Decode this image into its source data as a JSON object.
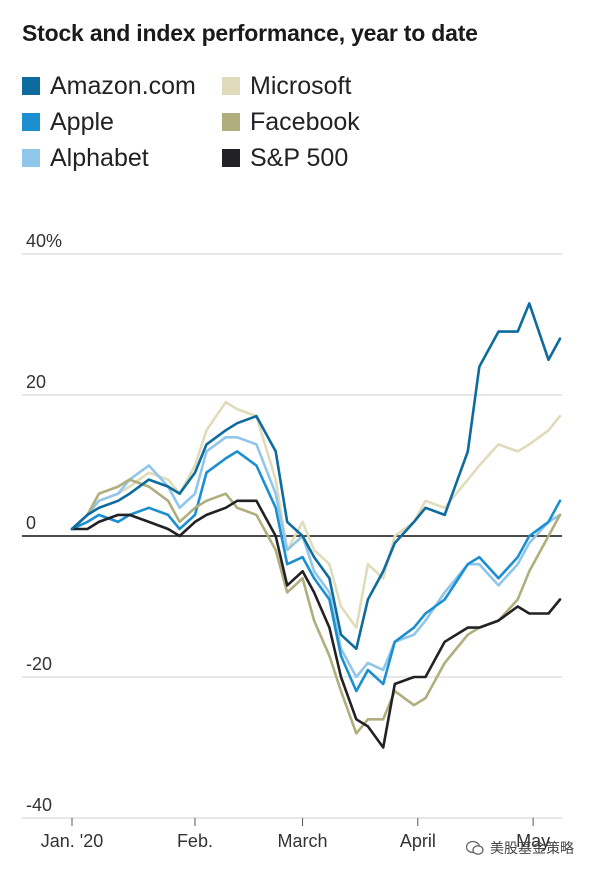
{
  "chart_data": {
    "type": "line",
    "title": "Stock and index performance, year to date",
    "ylim": [
      -40,
      40
    ],
    "ytick_labels": [
      "40%",
      "20",
      "0",
      "-20",
      "-40"
    ],
    "ytick_values": [
      40,
      20,
      0,
      -20,
      -40
    ],
    "xtick_labels": [
      "Jan. '20",
      "Feb.",
      "March",
      "April",
      "May"
    ],
    "xtick_values": [
      "2020-01-02",
      "2020-02-03",
      "2020-03-02",
      "2020-04-01",
      "2020-05-01"
    ],
    "x": [
      "2020-01-02",
      "2020-01-06",
      "2020-01-09",
      "2020-01-14",
      "2020-01-17",
      "2020-01-22",
      "2020-01-27",
      "2020-01-30",
      "2020-02-03",
      "2020-02-06",
      "2020-02-11",
      "2020-02-14",
      "2020-02-19",
      "2020-02-24",
      "2020-02-27",
      "2020-03-02",
      "2020-03-05",
      "2020-03-09",
      "2020-03-12",
      "2020-03-16",
      "2020-03-19",
      "2020-03-23",
      "2020-03-26",
      "2020-03-31",
      "2020-04-03",
      "2020-04-08",
      "2020-04-14",
      "2020-04-17",
      "2020-04-22",
      "2020-04-27",
      "2020-04-30",
      "2020-05-05",
      "2020-05-08"
    ],
    "series": [
      {
        "name": "Amazon.com",
        "color": "#0e6b9e",
        "values": [
          1,
          3,
          4,
          5,
          6,
          8,
          7,
          6,
          9,
          13,
          15,
          16,
          17,
          12,
          2,
          0,
          -3,
          -6,
          -14,
          -16,
          -9,
          -5,
          -1,
          2,
          4,
          3,
          12,
          24,
          29,
          29,
          33,
          25,
          28
        ]
      },
      {
        "name": "Apple",
        "color": "#1b8fd0",
        "values": [
          1,
          2,
          3,
          2,
          3,
          4,
          3,
          1,
          3,
          9,
          11,
          12,
          10,
          4,
          -4,
          -3,
          -6,
          -9,
          -17,
          -22,
          -19,
          -21,
          -15,
          -13,
          -11,
          -9,
          -4,
          -3,
          -6,
          -3,
          0,
          2,
          5
        ]
      },
      {
        "name": "Alphabet",
        "color": "#8fc6ea",
        "values": [
          1,
          3,
          5,
          6,
          8,
          10,
          7,
          4,
          6,
          12,
          14,
          14,
          13,
          6,
          -2,
          0,
          -5,
          -8,
          -16,
          -20,
          -18,
          -19,
          -15,
          -14,
          -12,
          -8,
          -4,
          -4,
          -7,
          -4,
          -1,
          2,
          3
        ]
      },
      {
        "name": "Microsoft",
        "color": "#e0dcbb",
        "values": [
          1,
          3,
          5,
          6,
          7,
          9,
          8,
          6,
          10,
          15,
          19,
          18,
          17,
          8,
          -2,
          2,
          -2,
          -4,
          -10,
          -13,
          -4,
          -6,
          0,
          2,
          5,
          4,
          8,
          10,
          13,
          12,
          13,
          15,
          17
        ]
      },
      {
        "name": "Facebook",
        "color": "#b0ae7c",
        "values": [
          1,
          3,
          6,
          7,
          8,
          7,
          5,
          2,
          4,
          5,
          6,
          4,
          3,
          -2,
          -8,
          -6,
          -12,
          -17,
          -22,
          -28,
          -26,
          -26,
          -22,
          -24,
          -23,
          -18,
          -14,
          -13,
          -12,
          -9,
          -5,
          0,
          3
        ]
      },
      {
        "name": "S&P 500",
        "color": "#222226",
        "values": [
          1,
          1,
          2,
          3,
          3,
          2,
          1,
          0,
          2,
          3,
          4,
          5,
          5,
          0,
          -7,
          -5,
          -8,
          -13,
          -20,
          -26,
          -27,
          -30,
          -21,
          -20,
          -20,
          -15,
          -13,
          -13,
          -12,
          -10,
          -11,
          -11,
          -9
        ]
      }
    ]
  },
  "watermark": {
    "text": "美股基金策略"
  }
}
